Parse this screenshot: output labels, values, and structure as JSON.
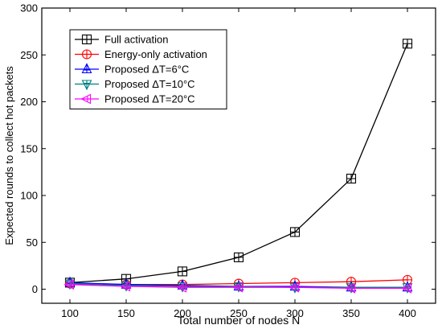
{
  "chart_data": {
    "type": "line",
    "xlabel": "Total number of nodes N",
    "ylabel": "Expected rounds to collect hot packets",
    "x": [
      100,
      150,
      200,
      250,
      300,
      350,
      400
    ],
    "xlim": [
      75,
      425
    ],
    "ylim": [
      -15,
      300
    ],
    "xticks": [
      100,
      150,
      200,
      250,
      300,
      350,
      400
    ],
    "yticks": [
      0,
      50,
      100,
      150,
      200,
      250,
      300
    ],
    "grid": false,
    "legend": "top-left",
    "series": [
      {
        "name": "Full activation",
        "color": "#000000",
        "marker": "square-cross",
        "values": [
          7,
          11,
          19,
          34,
          61,
          118,
          262
        ]
      },
      {
        "name": "Energy-only activation",
        "color": "#ff0000",
        "marker": "circle-cross",
        "values": [
          6,
          5,
          5,
          6,
          7,
          8,
          10
        ]
      },
      {
        "name": "Proposed ΔT=6°C",
        "color": "#0000ff",
        "marker": "triangle-up",
        "values": [
          7,
          5,
          4,
          3,
          3,
          2,
          2
        ]
      },
      {
        "name": "Proposed ΔT=10°C",
        "color": "#008080",
        "marker": "triangle-down",
        "values": [
          6,
          4,
          3,
          3,
          2,
          2,
          2
        ]
      },
      {
        "name": "Proposed ΔT=20°C",
        "color": "#ff00ff",
        "marker": "triangle-left",
        "values": [
          5,
          3,
          2,
          2,
          2,
          1,
          1
        ]
      }
    ]
  }
}
